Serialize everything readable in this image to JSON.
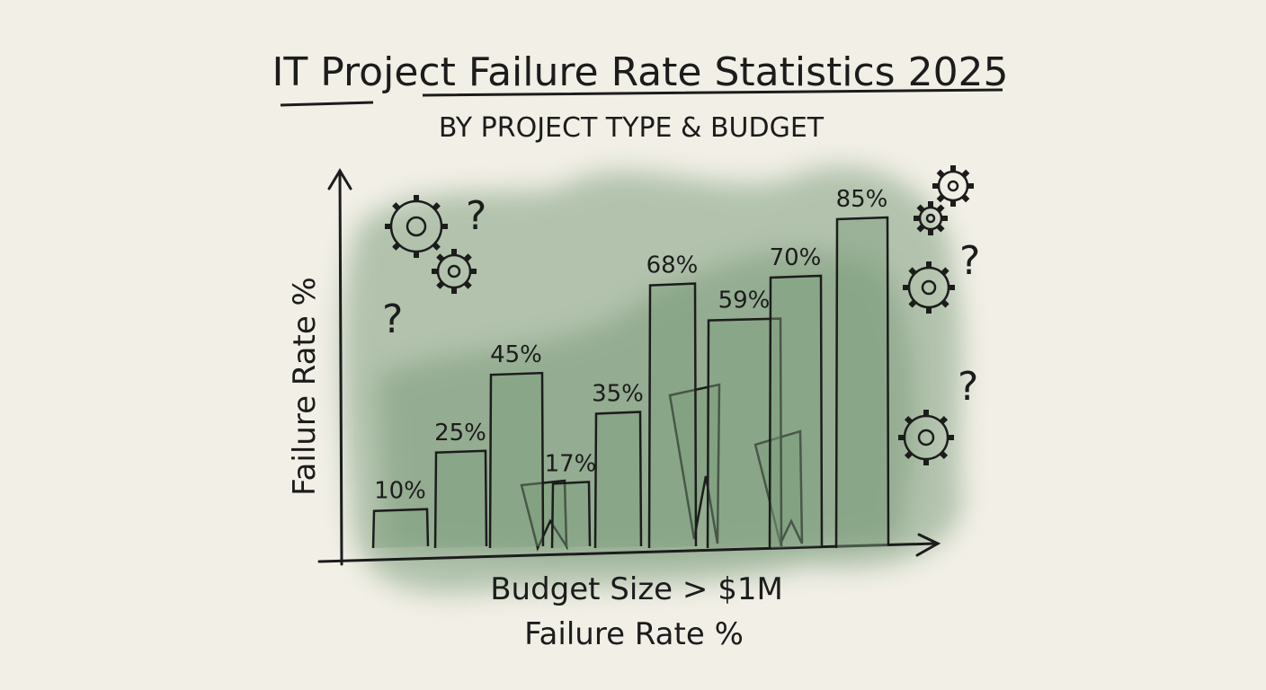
{
  "chart_data": {
    "type": "bar",
    "title": "IT Project Failure Rate Statistics 2025",
    "subtitle": "BY PROJECT TYPE & BUDGET",
    "xlabel": "Budget Size > $1M",
    "xlabel2": "Failure Rate %",
    "ylabel": "Failure Rate %",
    "ylim": [
      0,
      100
    ],
    "grid": false,
    "values": [
      10,
      25,
      45,
      17,
      35,
      68,
      59,
      70,
      85
    ],
    "labels": [
      "10%",
      "25%",
      "45%",
      "17%",
      "35%",
      "68%",
      "59%",
      "70%",
      "85%"
    ],
    "colors": {
      "wash": "#7f9f7f",
      "ink": "#1c1c1c",
      "paper": "#f1efe6"
    }
  }
}
